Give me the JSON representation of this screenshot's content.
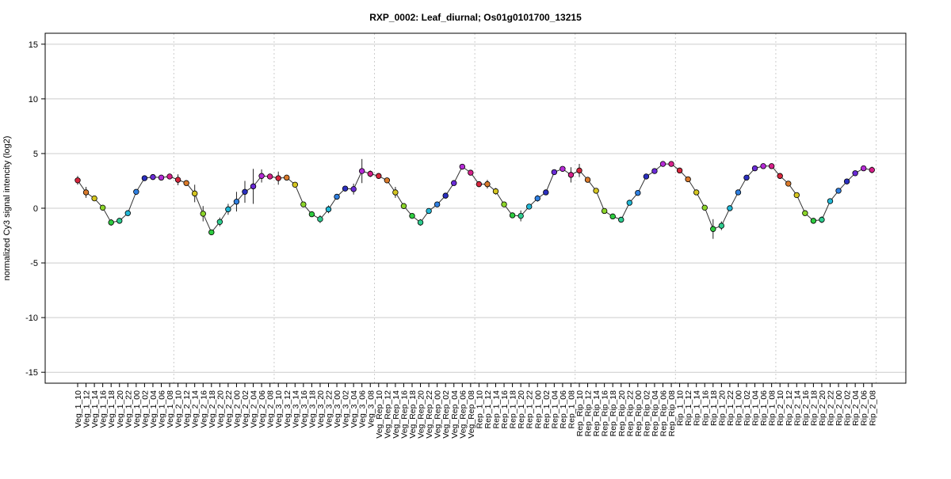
{
  "chart_data": {
    "type": "line",
    "title": "RXP_0002: Leaf_diurnal; Os01g0101700_13215",
    "ylabel": "normalized Cy3 signal intencity (log2)",
    "xlabel": "",
    "ylim": [
      -16,
      16
    ],
    "y_ticks": [
      -15,
      -10,
      -5,
      0,
      5,
      10,
      15
    ],
    "grid": "horizontal at y ticks; dotted vertical separators between groups",
    "group_boundaries_after_index": [
      11,
      23,
      35,
      47,
      59,
      71,
      83,
      95
    ],
    "categories": [
      "Veg_1_10",
      "Veg_1_12",
      "Veg_1_14",
      "Veg_1_16",
      "Veg_1_18",
      "Veg_1_20",
      "Veg_1_22",
      "Veg_1_00",
      "Veg_1_02",
      "Veg_1_04",
      "Veg_1_06",
      "Veg_1_08",
      "Veg_2_10",
      "Veg_2_12",
      "Veg_2_14",
      "Veg_2_16",
      "Veg_2_18",
      "Veg_2_20",
      "Veg_2_22",
      "Veg_2_00",
      "Veg_2_02",
      "Veg_2_04",
      "Veg_2_06",
      "Veg_2_08",
      "Veg_3_10",
      "Veg_3_12",
      "Veg_3_14",
      "Veg_3_16",
      "Veg_3_18",
      "Veg_3_20",
      "Veg_3_22",
      "Veg_3_00",
      "Veg_3_02",
      "Veg_3_04",
      "Veg_3_06",
      "Veg_3_08",
      "Veg_Rep_10",
      "Veg_Rep_12",
      "Veg_Rep_14",
      "Veg_Rep_16",
      "Veg_Rep_18",
      "Veg_Rep_20",
      "Veg_Rep_22",
      "Veg_Rep_00",
      "Veg_Rep_02",
      "Veg_Rep_04",
      "Veg_Rep_06",
      "Veg_Rep_08",
      "Rep_1_10",
      "Rep_1_12",
      "Rep_1_14",
      "Rep_1_16",
      "Rep_1_18",
      "Rep_1_20",
      "Rep_1_22",
      "Rep_1_00",
      "Rep_1_02",
      "Rep_1_04",
      "Rep_1_06",
      "Rep_1_08",
      "Rep_Rip_10",
      "Rep_Rip_12",
      "Rep_Rip_14",
      "Rep_Rip_16",
      "Rep_Rip_18",
      "Rep_Rip_20",
      "Rep_Rip_22",
      "Rep_Rip_00",
      "Rep_Rip_02",
      "Rep_Rip_04",
      "Rep_Rip_06",
      "Rep_Rip_08",
      "Rip_1_10",
      "Rip_1_12",
      "Rip_1_14",
      "Rip_1_16",
      "Rip_1_18",
      "Rip_1_20",
      "Rip_1_22",
      "Rip_1_00",
      "Rip_1_02",
      "Rip_1_04",
      "Rip_1_06",
      "Rip_1_08",
      "Rip_2_10",
      "Rip_2_12",
      "Rip_2_14",
      "Rip_2_16",
      "Rip_2_18",
      "Rip_2_20",
      "Rip_2_22",
      "Rip_2_00",
      "Rip_2_02",
      "Rip_2_04",
      "Rip_2_06",
      "Rip_2_08"
    ],
    "values": [
      2.55,
      1.45,
      0.9,
      0.05,
      -1.3,
      -1.15,
      -0.45,
      1.5,
      2.75,
      2.85,
      2.8,
      2.9,
      2.6,
      2.3,
      1.35,
      -0.5,
      -2.2,
      -1.25,
      -0.1,
      0.6,
      1.5,
      2.0,
      2.95,
      2.9,
      2.75,
      2.8,
      2.15,
      0.35,
      -0.55,
      -1.0,
      -0.1,
      1.05,
      1.8,
      1.75,
      3.4,
      3.15,
      2.95,
      2.55,
      1.45,
      0.2,
      -0.7,
      -1.3,
      -0.25,
      0.35,
      1.15,
      2.3,
      3.8,
      3.25,
      2.2,
      2.2,
      1.55,
      0.35,
      -0.65,
      -0.7,
      0.15,
      0.9,
      1.45,
      3.3,
      3.6,
      3.05,
      3.45,
      2.6,
      1.6,
      -0.25,
      -0.75,
      -1.05,
      0.5,
      1.4,
      2.9,
      3.4,
      4.05,
      4.05,
      3.45,
      2.65,
      1.45,
      0.05,
      -1.9,
      -1.6,
      0.0,
      1.45,
      2.8,
      3.65,
      3.85,
      3.85,
      2.95,
      2.25,
      1.2,
      -0.45,
      -1.15,
      -1.05,
      0.65,
      1.6,
      2.45,
      3.2,
      3.65,
      3.5
    ],
    "error": [
      0.4,
      0.5,
      0.15,
      0.25,
      0.3,
      0.1,
      0.15,
      0.15,
      0.1,
      0.1,
      0.1,
      0.1,
      0.5,
      0.15,
      0.8,
      0.7,
      0.15,
      0.4,
      0.5,
      0.9,
      1.0,
      1.6,
      0.6,
      0.15,
      0.6,
      0.2,
      0.15,
      0.1,
      0.15,
      0.35,
      0.35,
      0.2,
      0.15,
      0.5,
      1.1,
      0.3,
      0.2,
      0.2,
      0.5,
      0.2,
      0.1,
      0.3,
      0.2,
      0.15,
      0.1,
      0.1,
      0.15,
      0.1,
      0.2,
      0.4,
      0.3,
      0.15,
      0.15,
      0.5,
      0.15,
      0.3,
      0.1,
      0.15,
      0.15,
      0.7,
      0.6,
      0.1,
      0.15,
      0.1,
      0.1,
      0.15,
      0.1,
      0.1,
      0.1,
      0.1,
      0.1,
      0.1,
      0.15,
      0.15,
      0.1,
      0.15,
      0.9,
      0.4,
      0.1,
      0.1,
      0.1,
      0.1,
      0.1,
      0.1,
      0.15,
      0.1,
      0.15,
      0.15,
      0.1,
      0.3,
      0.15,
      0.1,
      0.1,
      0.1,
      0.15,
      0.3
    ],
    "point_colors_by_hour": {
      "10": "#D7263D",
      "12": "#D97A2B",
      "14": "#D4C520",
      "16": "#8BD42A",
      "18": "#2ECC40",
      "20": "#2ECC8F",
      "22": "#22B8D6",
      "00": "#2F7FE0",
      "02": "#2B2FBF",
      "04": "#6A2BD6",
      "06": "#B52BD6",
      "08": "#D6208A"
    },
    "line_color": "#333333",
    "gridline_color": "#cccccc"
  }
}
